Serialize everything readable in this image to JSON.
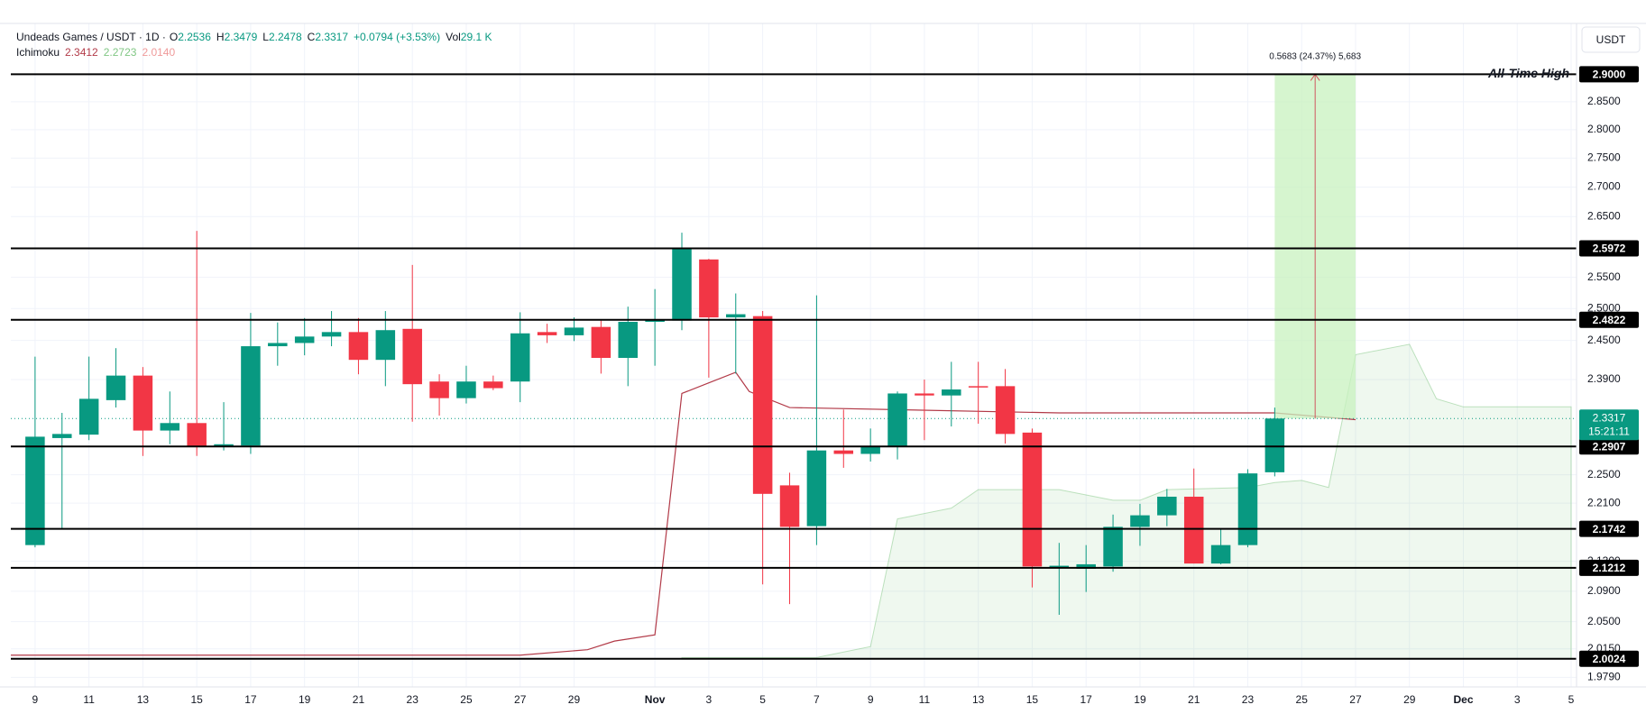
{
  "chart_data": {
    "type": "candlestick",
    "header": {
      "symbol": "Undeads Games / USDT · 1D ·",
      "fields": [
        {
          "key": "O",
          "value": "2.2536"
        },
        {
          "key": "H",
          "value": "2.3479"
        },
        {
          "key": "L",
          "value": "2.2478"
        },
        {
          "key": "C",
          "value": "2.3317"
        }
      ],
      "change": "+0.0794 (+3.53%)",
      "volume_key": "Vol",
      "volume": "29.1 K"
    },
    "currency": "USDT",
    "log_scale": true,
    "grid": true,
    "up_color": "#089981",
    "down_color": "#f23645",
    "x": [
      0,
      1,
      2,
      3,
      4,
      5,
      6,
      7,
      8,
      9,
      10,
      11,
      12,
      13,
      14,
      15,
      16,
      17,
      18,
      19,
      20,
      21,
      22,
      23,
      24,
      25,
      26,
      27,
      28,
      29,
      30,
      31,
      32,
      33,
      34,
      35,
      36,
      37,
      38,
      39,
      40,
      41,
      42,
      43,
      44,
      45,
      46
    ],
    "open": [
      2.152,
      2.303,
      2.308,
      2.359,
      2.396,
      2.314,
      2.325,
      2.29,
      2.292,
      2.441,
      2.446,
      2.456,
      2.463,
      2.42,
      2.468,
      2.387,
      2.362,
      2.387,
      2.387,
      2.463,
      2.458,
      2.471,
      2.423,
      2.479,
      2.481,
      2.579,
      2.486,
      2.488,
      2.235,
      2.178,
      2.285,
      2.28,
      2.291,
      2.369,
      2.366,
      2.38,
      2.38,
      2.311,
      2.122,
      2.12,
      2.123,
      2.177,
      2.193,
      2.219,
      2.127,
      2.152,
      2.2536
    ],
    "high": [
      2.425,
      2.34,
      2.425,
      2.438,
      2.409,
      2.372,
      2.626,
      2.356,
      2.493,
      2.478,
      2.485,
      2.496,
      2.485,
      2.496,
      2.57,
      2.398,
      2.411,
      2.396,
      2.494,
      2.476,
      2.486,
      2.481,
      2.503,
      2.531,
      2.623,
      2.58,
      2.524,
      2.496,
      2.253,
      2.521,
      2.345,
      2.317,
      2.372,
      2.39,
      2.417,
      2.417,
      2.406,
      2.317,
      2.155,
      2.152,
      2.194,
      2.209,
      2.23,
      2.259,
      2.174,
      2.258,
      2.3479
    ],
    "low": [
      2.149,
      2.174,
      2.3,
      2.348,
      2.277,
      2.294,
      2.277,
      2.285,
      2.28,
      2.411,
      2.427,
      2.441,
      2.398,
      2.38,
      2.327,
      2.336,
      2.354,
      2.374,
      2.356,
      2.446,
      2.449,
      2.399,
      2.38,
      2.411,
      2.466,
      2.393,
      2.399,
      2.099,
      2.073,
      2.152,
      2.26,
      2.269,
      2.272,
      2.3,
      2.32,
      2.324,
      2.295,
      2.095,
      2.059,
      2.089,
      2.116,
      2.151,
      2.178,
      2.127,
      2.126,
      2.149,
      2.2478
    ],
    "close": [
      2.305,
      2.309,
      2.361,
      2.396,
      2.314,
      2.325,
      2.29,
      2.294,
      2.441,
      2.446,
      2.456,
      2.463,
      2.42,
      2.466,
      2.383,
      2.362,
      2.387,
      2.377,
      2.461,
      2.458,
      2.47,
      2.423,
      2.479,
      2.483,
      2.597,
      2.486,
      2.491,
      2.223,
      2.177,
      2.285,
      2.28,
      2.29,
      2.369,
      2.366,
      2.375,
      2.378,
      2.309,
      2.123,
      2.124,
      2.126,
      2.177,
      2.193,
      2.219,
      2.127,
      2.152,
      2.252,
      2.3317
    ],
    "xlim": [
      -0.9,
      57.2
    ],
    "xticks": [
      {
        "value": 0,
        "label": "9"
      },
      {
        "value": 2,
        "label": "11"
      },
      {
        "value": 4,
        "label": "13"
      },
      {
        "value": 6,
        "label": "15"
      },
      {
        "value": 8,
        "label": "17"
      },
      {
        "value": 10,
        "label": "19"
      },
      {
        "value": 12,
        "label": "21"
      },
      {
        "value": 14,
        "label": "23"
      },
      {
        "value": 16,
        "label": "25"
      },
      {
        "value": 18,
        "label": "27"
      },
      {
        "value": 20,
        "label": "29"
      },
      {
        "value": 23,
        "label": "Nov"
      },
      {
        "value": 25,
        "label": "3"
      },
      {
        "value": 27,
        "label": "5"
      },
      {
        "value": 29,
        "label": "7"
      },
      {
        "value": 31,
        "label": "9"
      },
      {
        "value": 33,
        "label": "11"
      },
      {
        "value": 35,
        "label": "13"
      },
      {
        "value": 37,
        "label": "15"
      },
      {
        "value": 39,
        "label": "17"
      },
      {
        "value": 41,
        "label": "19"
      },
      {
        "value": 43,
        "label": "21"
      },
      {
        "value": 45,
        "label": "23"
      },
      {
        "value": 47,
        "label": "25"
      },
      {
        "value": 49,
        "label": "27"
      },
      {
        "value": 51,
        "label": "29"
      },
      {
        "value": 53,
        "label": "Dec"
      },
      {
        "value": 55,
        "label": "3"
      },
      {
        "value": 57,
        "label": "5"
      }
    ],
    "ylim": [
      1.967,
      2.995
    ],
    "yticks": [
      {
        "value": 1.979,
        "label": "1.9790"
      },
      {
        "value": 2.015,
        "label": "2.0150"
      },
      {
        "value": 2.05,
        "label": "2.0500"
      },
      {
        "value": 2.09,
        "label": "2.0900"
      },
      {
        "value": 2.13,
        "label": "2.1300"
      },
      {
        "value": 2.21,
        "label": "2.2100"
      },
      {
        "value": 2.25,
        "label": "2.2500"
      },
      {
        "value": 2.39,
        "label": "2.3900"
      },
      {
        "value": 2.45,
        "label": "2.4500"
      },
      {
        "value": 2.5,
        "label": "2.5000"
      },
      {
        "value": 2.55,
        "label": "2.5500"
      },
      {
        "value": 2.65,
        "label": "2.6500"
      },
      {
        "value": 2.7,
        "label": "2.7000"
      },
      {
        "value": 2.75,
        "label": "2.7500"
      },
      {
        "value": 2.8,
        "label": "2.8000"
      },
      {
        "value": 2.85,
        "label": "2.8500"
      }
    ],
    "levels": [
      {
        "value": 2.9,
        "label": "2.9000",
        "annotation": "All-Time High"
      },
      {
        "value": 2.5972,
        "label": "2.5972"
      },
      {
        "value": 2.4822,
        "label": "2.4822"
      },
      {
        "value": 2.2907,
        "label": "2.2907"
      },
      {
        "value": 2.1742,
        "label": "2.1742"
      },
      {
        "value": 2.1212,
        "label": "2.1212"
      },
      {
        "value": 2.0024,
        "label": "2.0024"
      }
    ],
    "last_price": {
      "value": 2.3317,
      "label": "2.3317",
      "countdown": "15:21:11"
    },
    "measure": {
      "x": [
        46,
        49
      ],
      "from": 2.3317,
      "to": 2.9,
      "label": "0.5683 (24.37%) 5,683",
      "color": "#c8f2bf"
    },
    "ichimoku": {
      "name": "Ichimoku",
      "legend_values": [
        "2.3412",
        "2.2723",
        "2.0140"
      ],
      "legend_colors": [
        "#b23a48",
        "#81c784",
        "#ef9a9a"
      ],
      "base_line": {
        "color": "#b23a48",
        "x": [
          -0.9,
          18,
          20.5,
          21.5,
          23,
          24,
          25,
          26,
          26.5,
          28,
          38,
          46,
          49
        ],
        "values": [
          2.007,
          2.007,
          2.014,
          2.025,
          2.033,
          2.369,
          2.385,
          2.401,
          2.372,
          2.348,
          2.34,
          2.34,
          2.33
        ]
      },
      "cloud": {
        "color": "#4caf50",
        "x": [
          24,
          29,
          31,
          32,
          34,
          35,
          38,
          40,
          41,
          42,
          45,
          46,
          47,
          48,
          49,
          51,
          52,
          53,
          57
        ],
        "upper": [
          2.004,
          2.004,
          2.018,
          2.188,
          2.203,
          2.229,
          2.229,
          2.214,
          2.214,
          2.229,
          2.232,
          2.239,
          2.242,
          2.232,
          2.428,
          2.444,
          2.361,
          2.349,
          2.349
        ],
        "lower": [
          2.002,
          2.002,
          2.002,
          2.002,
          2.002,
          2.002,
          2.002,
          2.002,
          2.002,
          2.002,
          2.002,
          2.002,
          2.002,
          2.002,
          2.002,
          2.002,
          2.002,
          2.002,
          2.002
        ]
      }
    }
  }
}
